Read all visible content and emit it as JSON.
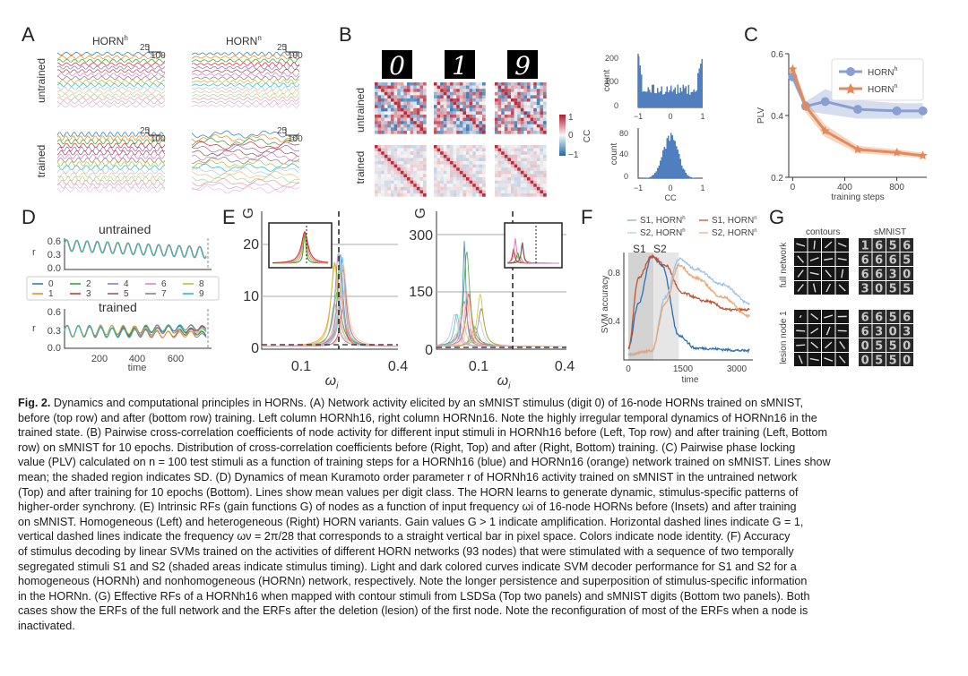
{
  "panels": {
    "A": {
      "label": "A",
      "col_titles": [
        "HORN",
        "HORN"
      ],
      "col_sups": [
        "h",
        "n"
      ],
      "row_labels": [
        "untrained",
        "trained"
      ],
      "scalebars": [
        "25",
        "100",
        "25",
        "100",
        "25",
        "100",
        "25",
        "100"
      ]
    },
    "B": {
      "label": "B",
      "digits": [
        "0",
        "1",
        "9"
      ],
      "row_labels": [
        "untrained",
        "trained"
      ],
      "colorbar_ticks": [
        "1",
        "0",
        "−1"
      ],
      "colorbar_label": "CC",
      "hist_top": {
        "yticks": [
          "200",
          "100",
          "0"
        ],
        "xticks": [
          "−1",
          "0",
          "1"
        ],
        "ylabel": "count"
      },
      "hist_bottom": {
        "yticks": [
          "80",
          "40",
          "0"
        ],
        "xticks": [
          "−1",
          "0",
          "1"
        ],
        "ylabel": "count",
        "xlabel": "CC"
      }
    },
    "C": {
      "label": "C"
    },
    "D": {
      "label": "D",
      "top_title": "untrained",
      "bottom_title": "trained",
      "ylabel": "r",
      "yticks": [
        "0.6",
        "0.3",
        "0.0"
      ],
      "xticks": [
        "200",
        "400",
        "600"
      ],
      "xlabel": "time",
      "legend": [
        "0",
        "1",
        "2",
        "3",
        "4",
        "5",
        "6",
        "7",
        "8",
        "9"
      ]
    },
    "E": {
      "label": "E",
      "ylabel": "G",
      "left_yticks": [
        "20",
        "10",
        "0"
      ],
      "right_yticks": [
        "300",
        "150",
        "0"
      ],
      "xticks": [
        "0.1",
        "0.4"
      ],
      "xlabel": "ω",
      "xlabel_sub": "i"
    },
    "F": {
      "label": "F",
      "legend": [
        {
          "text": "S1, HORN",
          "sup": "h",
          "color": "#8fb6d8"
        },
        {
          "text": "S1, HORN",
          "sup": "n",
          "color": "#c8643a"
        },
        {
          "text": "S2, HORN",
          "sup": "h",
          "color": "#b9d4ea"
        },
        {
          "text": "S2, HORN",
          "sup": "n",
          "color": "#efb58a"
        }
      ],
      "stim_labels": [
        "S1",
        "S2"
      ],
      "ylabel": "SVM accuracy",
      "yticks": [
        "0.8",
        "0.4"
      ],
      "xticks": [
        "0",
        "1500",
        "3000"
      ],
      "xlabel": "time"
    },
    "G": {
      "label": "G",
      "col_titles": [
        "contours",
        "sMNIST"
      ],
      "row_labels": [
        "full network",
        "lesion node 1"
      ]
    }
  },
  "chart_data": [
    {
      "panel": "C",
      "type": "line",
      "xlabel": "training steps",
      "ylabel": "PLV",
      "xlim": [
        -30,
        1030
      ],
      "ylim": [
        0.2,
        0.6
      ],
      "xticks": [
        0,
        400,
        800
      ],
      "yticks": [
        0.2,
        0.4,
        0.6
      ],
      "legend_position": "top-right",
      "series": [
        {
          "name": "HORN",
          "name_sup": "h",
          "color": "#8a9fd1",
          "x": [
            0,
            100,
            250,
            500,
            800,
            1000
          ],
          "y": [
            0.525,
            0.43,
            0.445,
            0.42,
            0.415,
            0.415
          ],
          "sd": [
            0.015,
            0.015,
            0.04,
            0.03,
            0.025,
            0.025
          ]
        },
        {
          "name": "HORN",
          "name_sup": "n",
          "color": "#e48a5a",
          "x": [
            0,
            100,
            250,
            500,
            800,
            1000
          ],
          "y": [
            0.55,
            0.43,
            0.35,
            0.29,
            0.28,
            0.27
          ],
          "sd": [
            0.02,
            0.02,
            0.02,
            0.012,
            0.01,
            0.01
          ]
        }
      ]
    }
  ],
  "caption": {
    "fig_label": "Fig. 2.",
    "lines": [
      "Dynamics and computational principles in HORNs. (A) Network activity elicited by an sMNIST stimulus (digit 0) of 16-node HORNs trained on sMNIST,",
      "before (top row) and after (bottom row) training. Left column HORNh16, right column HORNn16. Note the highly irregular temporal dynamics of HORNn16 in the",
      "trained state. (B) Pairwise cross-correlation coefficients of node activity for different input stimuli in HORNh16 before (Left, Top row) and after training (Left, Bottom",
      "row) on sMNIST for 10 epochs. Distribution of cross-correlation coefficients before (Right, Top) and after (Right, Bottom) training. (C) Pairwise phase locking",
      "value (PLV) calculated on n = 100 test stimuli as a function of training steps for a HORNh16 (blue) and HORNn16 (orange) network trained on sMNIST. Lines show",
      "mean; the shaded region indicates SD. (D) Dynamics of mean Kuramoto order parameter r of HORNh16 activity trained on sMNIST in the untrained network",
      "(Top) and after training for 10 epochs (Bottom). Lines show mean values per digit class. The HORN learns to generate dynamic, stimulus-specific patterns of",
      "higher-order synchrony. (E) Intrinsic RFs (gain functions G) of nodes as a function of input frequency ωi of 16-node HORNs before (Insets) and after training",
      "on sMNIST. Homogeneous (Left) and heterogeneous (Right) HORN variants. Gain values G > 1 indicate amplification. Horizontal dashed lines indicate G = 1,",
      "vertical dashed lines indicate the frequency ων = 2π/28 that corresponds to a straight vertical bar in pixel space. Colors indicate node identity. (F) Accuracy",
      "of stimulus decoding by linear SVMs trained on the activities of different HORN networks (93 nodes) that were stimulated with a sequence of two temporally",
      "segregated stimuli S1 and S2 (shaded areas indicate stimulus timing). Light and dark colored curves indicate SVM decoder performance for S1 and S2 for a",
      "homogeneous (HORNh) and nonhomogeneous (HORNn) network, respectively. Note the longer persistence and superposition of stimulus-specific information",
      "in the HORNn. (G) Effective RFs of a HORNh16 when mapped with contour stimuli from LSDSa (Top two panels) and sMNIST digits (Bottom two panels). Both",
      "cases show the ERFs of the full network and the ERFs after the deletion (lesion) of the first node. Note the reconfiguration of most of the ERFs when a node is",
      "inactivated."
    ]
  }
}
